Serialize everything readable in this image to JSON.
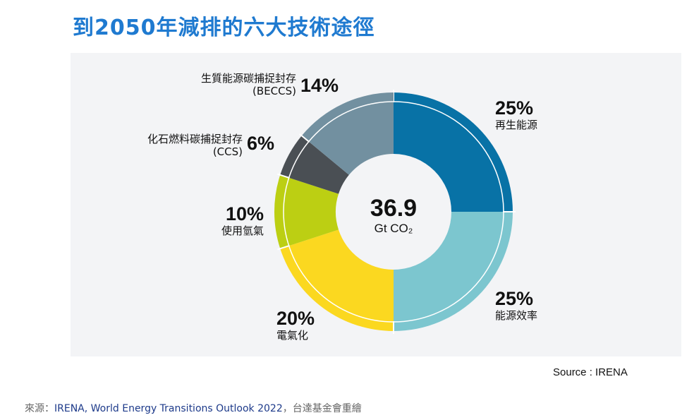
{
  "title": "到2050年減排的六大技術途徑",
  "chart_data": {
    "type": "pie",
    "title": "到2050年減排的六大技術途徑",
    "center_value": "36.9",
    "center_unit": "Gt CO₂",
    "slices": [
      {
        "label": "再生能源",
        "value": 25,
        "pct": "25%",
        "color": "#0872a6"
      },
      {
        "label": "能源效率",
        "value": 25,
        "pct": "25%",
        "color": "#7cc6cf"
      },
      {
        "label": "電氣化",
        "value": 20,
        "pct": "20%",
        "color": "#fbd820"
      },
      {
        "label": "使用氫氣",
        "value": 10,
        "pct": "10%",
        "color": "#bccf13"
      },
      {
        "label": "化石燃料碳捕捉封存",
        "sublabel": "(CCS)",
        "value": 6,
        "pct": "6%",
        "color": "#4a4f54"
      },
      {
        "label": "生質能源碳捕捉封存",
        "sublabel": "(BECCS)",
        "value": 14,
        "pct": "14%",
        "color": "#7290a0"
      }
    ]
  },
  "source": "Source : IRENA",
  "footer": {
    "prefix": "來源：",
    "ref": "IRENA, World Energy Transitions Outlook 2022",
    "suffix": "，台達基金會重繪"
  }
}
